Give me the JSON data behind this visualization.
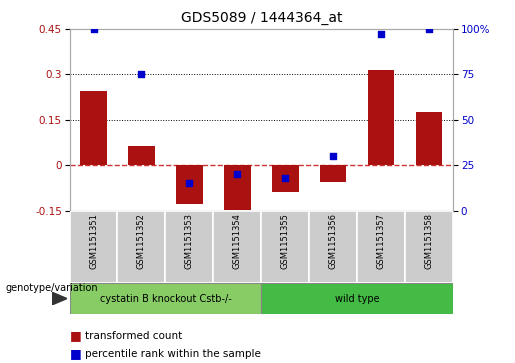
{
  "title": "GDS5089 / 1444364_at",
  "samples": [
    "GSM1151351",
    "GSM1151352",
    "GSM1151353",
    "GSM1151354",
    "GSM1151355",
    "GSM1151356",
    "GSM1151357",
    "GSM1151358"
  ],
  "transformed_count": [
    0.245,
    0.065,
    -0.13,
    -0.148,
    -0.09,
    -0.055,
    0.315,
    0.175
  ],
  "percentile_rank": [
    100,
    75,
    15,
    20,
    18,
    30,
    97,
    100
  ],
  "group1_indices": [
    0,
    1,
    2,
    3
  ],
  "group2_indices": [
    4,
    5,
    6,
    7
  ],
  "group1_label": "cystatin B knockout Cstb-/-",
  "group2_label": "wild type",
  "genotype_label": "genotype/variation",
  "ylim_left": [
    -0.15,
    0.45
  ],
  "ylim_right": [
    0,
    100
  ],
  "yticks_left": [
    -0.15,
    0,
    0.15,
    0.3,
    0.45
  ],
  "yticks_right": [
    0,
    25,
    50,
    75,
    100
  ],
  "hline_y": [
    0.15,
    0.3
  ],
  "bar_color": "#AA1111",
  "dot_color": "#0000CC",
  "zero_line_color": "#CC3333",
  "hline_color": "black",
  "group1_bg": "#88CC66",
  "group2_bg": "#44BB44",
  "sample_bg": "#CCCCCC",
  "legend_bar_label": "transformed count",
  "legend_dot_label": "percentile rank within the sample",
  "bar_width": 0.55
}
